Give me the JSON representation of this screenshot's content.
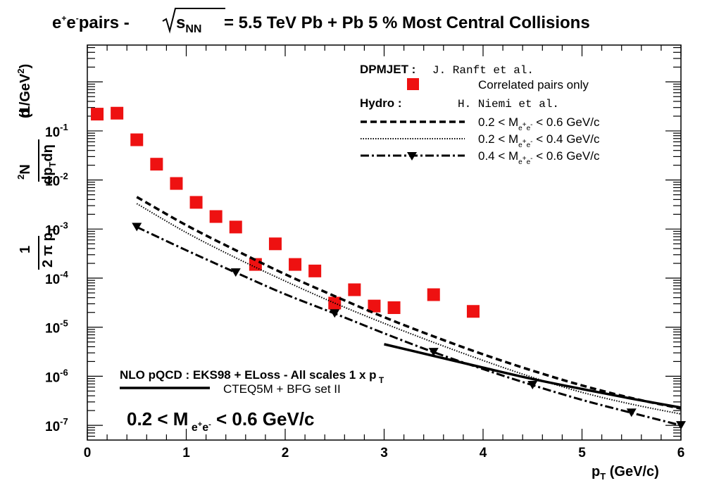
{
  "chart_data": {
    "type": "scatter",
    "title_main": "pairs  - ",
    "title_rest": " = 5.5 TeV Pb + Pb 5 % Most Central Collisions",
    "title_particle": "e",
    "title_sqrt_s": "s",
    "title_sqrt_sub": "NN",
    "xlabel": "p",
    "xlabel_sub": "T",
    "xlabel_unit": "(GeV/c)",
    "ylabel_unit": "(1/GeV",
    "xlim": [
      0,
      6
    ],
    "ylim_log10": [
      -7.3,
      0.75
    ],
    "y_scale": "log",
    "x_ticks": [
      "0",
      "1",
      "2",
      "3",
      "4",
      "5",
      "6"
    ],
    "y_tick_exponents": [
      "-1",
      "-2",
      "-3",
      "-4",
      "-5",
      "-6",
      "-7"
    ],
    "y_tick_base": "10",
    "series": [
      {
        "name": "Correlated pairs only",
        "kind": "markers",
        "color": "#ee1111",
        "x": [
          0.1,
          0.3,
          0.5,
          0.7,
          0.9,
          1.1,
          1.3,
          1.5,
          1.7,
          1.9,
          2.1,
          2.3,
          2.5,
          2.7,
          2.9,
          3.1,
          3.5,
          3.9
        ],
        "y": [
          0.22,
          0.23,
          0.066,
          0.021,
          0.0085,
          0.0035,
          0.0018,
          0.0011,
          0.00019,
          0.0005,
          0.00019,
          0.00014,
          3.1e-05,
          5.8e-05,
          2.7e-05,
          2.5e-05,
          4.6e-05,
          2.1e-05
        ]
      },
      {
        "name": "0.2 < M < 0.6 GeV/c",
        "kind": "dashed",
        "x": [
          0.5,
          1,
          1.5,
          2,
          2.5,
          3,
          3.5,
          4,
          4.5,
          5,
          5.5,
          6
        ],
        "y": [
          0.0045,
          0.0012,
          0.00037,
          0.00012,
          4.3e-05,
          1.6e-05,
          6.5e-06,
          2.8e-06,
          1.3e-06,
          6.5e-07,
          3.6e-07,
          2.2e-07
        ]
      },
      {
        "name": "0.2 < M < 0.4 GeV/c",
        "kind": "dotted",
        "x": [
          0.5,
          1,
          1.5,
          2,
          2.5,
          3,
          3.5,
          4,
          4.5,
          5,
          5.5,
          6
        ],
        "y": [
          0.0033,
          0.00085,
          0.00026,
          8.7e-05,
          3.1e-05,
          1.2e-05,
          4.9e-06,
          2.1e-06,
          9.5e-07,
          4.7e-07,
          2.7e-07,
          1.7e-07
        ]
      },
      {
        "name": "0.4 < M < 0.6 GeV/c",
        "kind": "dashdot-triangles",
        "x": [
          0.5,
          1,
          1.5,
          2,
          2.5,
          3,
          3.5,
          4,
          4.5,
          5,
          5.5,
          6
        ],
        "y": [
          0.0011,
          0.00037,
          0.00013,
          4.7e-05,
          1.9e-05,
          7.5e-06,
          3.1e-06,
          1.4e-06,
          6.6e-07,
          3.3e-07,
          1.8e-07,
          1e-07
        ]
      },
      {
        "name": "CTEQ5M + BFG set II",
        "kind": "solid",
        "x": [
          3,
          3.5,
          4,
          4.5,
          5,
          5.5,
          6
        ],
        "y": [
          4.5e-06,
          2.6e-06,
          1.5e-06,
          8.8e-07,
          5.5e-07,
          3.5e-07,
          2.3e-07
        ]
      }
    ],
    "legend": {
      "dpmjet_label": "DPMJET :",
      "dpmjet_ref": "J. Ranft et al.",
      "correlated_label": "Correlated pairs only",
      "hydro_label": "Hydro :",
      "hydro_ref": "H. Niemi et al.",
      "mass_rows": [
        {
          "pre": "0.2 < M",
          "post": " < 0.6 GeV/c"
        },
        {
          "pre": "0.2 < M",
          "post": " < 0.4 GeV/c"
        },
        {
          "pre": "0.4 < M",
          "post": " < 0.6 GeV/c"
        }
      ],
      "nlo_label": "NLO pQCD : EKS98 + ELoss - All scales 1 x p",
      "nlo_sub": "T",
      "cteq_label": "CTEQ5M + BFG set II",
      "mass_label_pre": "0.2 < M",
      "mass_label_post": " < 0.6 GeV/c"
    }
  }
}
